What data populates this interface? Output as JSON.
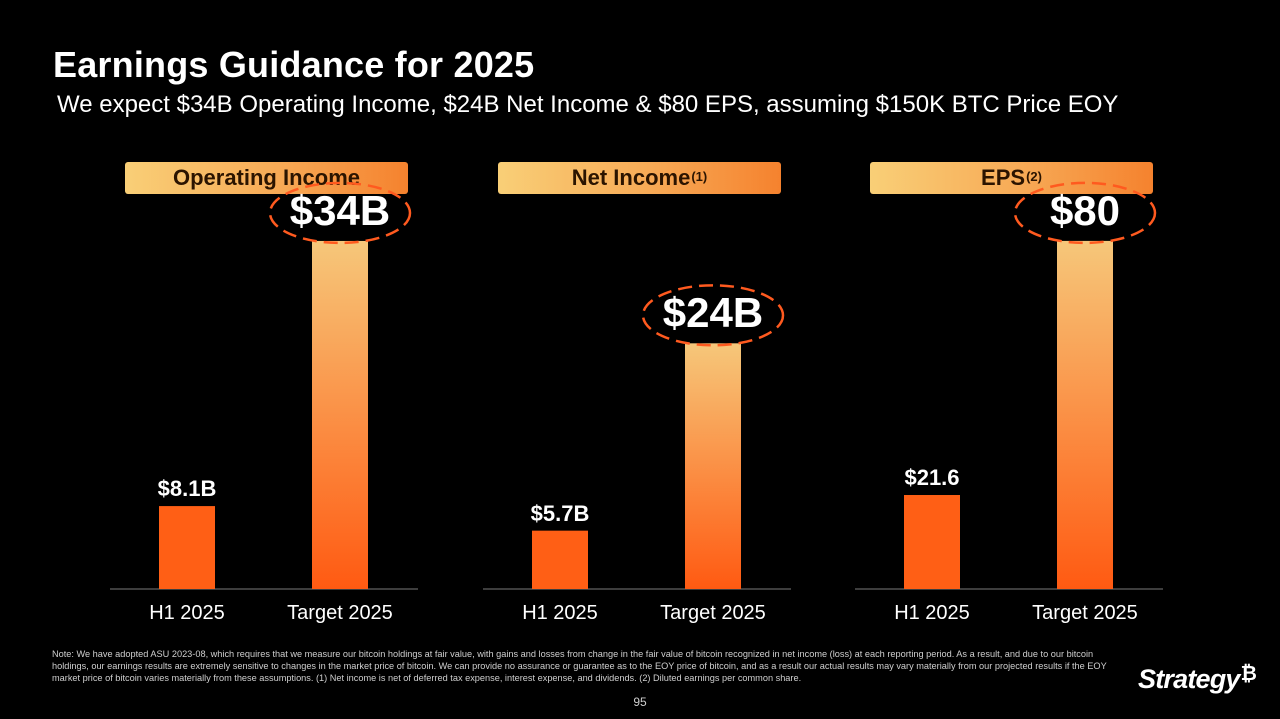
{
  "title": "Earnings Guidance for 2025",
  "subtitle": "We expect $34B Operating Income, $24B Net Income & $80 EPS, assuming $150K BTC Price EOY",
  "colors": {
    "bar_h1": "#ff5f15",
    "bar_target_top": "#f6c77a",
    "bar_target_bottom": "#ff5a12",
    "header_start": "#f9cf77",
    "header_end": "#f5822e",
    "ellipse": "#ff5a1f"
  },
  "chart_data": [
    {
      "type": "bar",
      "title": "Operating Income",
      "title_sup": "",
      "categories": [
        "H1 2025",
        "Target 2025"
      ],
      "values": [
        8.1,
        34
      ],
      "value_labels": [
        "$8.1B",
        "$34B"
      ],
      "ylim": [
        0,
        38
      ],
      "highlight_index": 1
    },
    {
      "type": "bar",
      "title": "Net Income",
      "title_sup": "(1)",
      "categories": [
        "H1 2025",
        "Target 2025"
      ],
      "values": [
        5.7,
        24
      ],
      "value_labels": [
        "$5.7B",
        "$24B"
      ],
      "ylim": [
        0,
        38
      ],
      "highlight_index": 1
    },
    {
      "type": "bar",
      "title": "EPS",
      "title_sup": "(2)",
      "categories": [
        "H1 2025",
        "Target 2025"
      ],
      "values": [
        21.6,
        80
      ],
      "value_labels": [
        "$21.6",
        "$80"
      ],
      "ylim": [
        0,
        89.4
      ],
      "highlight_index": 1
    }
  ],
  "note": "Note: We have adopted ASU 2023-08, which requires that we measure our bitcoin holdings at fair value, with gains and losses from change in the fair value of bitcoin recognized in net income (loss) at each reporting period.  As a result, and due to our bitcoin holdings, our earnings results are extremely sensitive to changes in the market price of bitcoin. We can provide no assurance or guarantee as to the EOY price of bitcoin, and as a result our actual results may vary materially from our projected results if the EOY market price of bitcoin varies materially from these assumptions. (1) Net income is net of deferred tax expense, interest expense, and dividends. (2) Diluted earnings per common share.",
  "page_number": "95",
  "logo": {
    "text": "Strategy",
    "mark": "₿"
  }
}
